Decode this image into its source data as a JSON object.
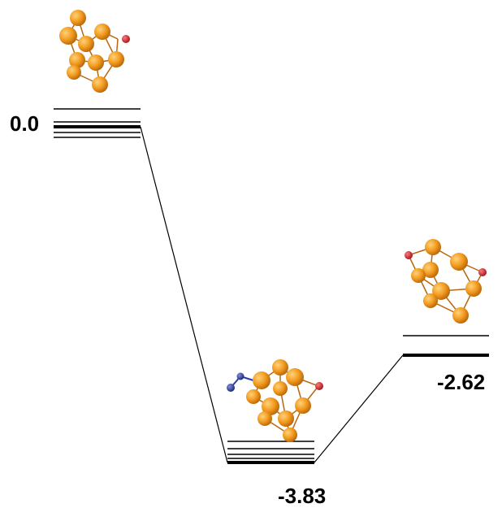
{
  "states": [
    {
      "id": "initial",
      "energy_label": "0.0"
    },
    {
      "id": "intermediate",
      "energy_label": "-3.83"
    },
    {
      "id": "final",
      "energy_label": "-2.62"
    }
  ],
  "colors": {
    "metal_atom": "#f29a1e",
    "metal_atom_highlight": "#ffd27a",
    "metal_atom_shadow": "#b5650a",
    "oxygen_atom": "#d21f26",
    "nitrogen_atom": "#2b3d9e",
    "bond": "#b8660f",
    "level_line": "#000000"
  },
  "icons": [
    "cluster-initial-icon",
    "cluster-intermediate-icon",
    "cluster-final-icon"
  ]
}
